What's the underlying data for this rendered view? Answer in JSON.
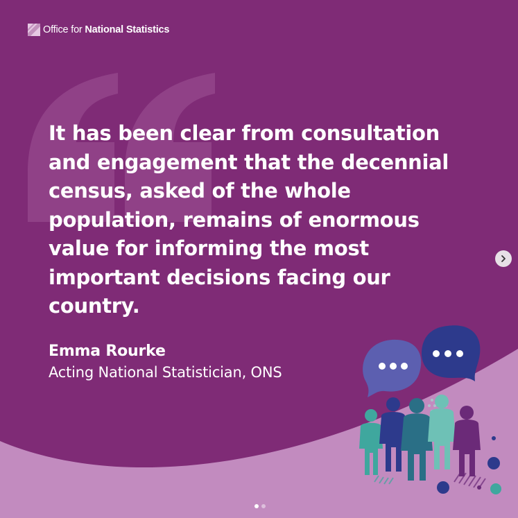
{
  "brand": {
    "prefix": "Office for ",
    "name": "National Statistics",
    "icon": "ons-logo-icon"
  },
  "quote": {
    "text": "It has been clear from consultation and engagement that the decennial census, asked of the whole population, remains of enormous value for informing the most important decisions facing our country."
  },
  "author": {
    "name": "Emma Rourke",
    "role": "Acting National Statistician, ONS"
  },
  "carousel": {
    "next_icon": "chevron-right-icon",
    "slide_count": 2,
    "active_slide": 1
  },
  "colors": {
    "background": "#7f2b76",
    "wave": "#c28bbf",
    "quote_mark": "#93458b",
    "teal": "#3fa79e",
    "navy": "#2d3a8c",
    "purple": "#6b2a78",
    "text": "#ffffff"
  }
}
